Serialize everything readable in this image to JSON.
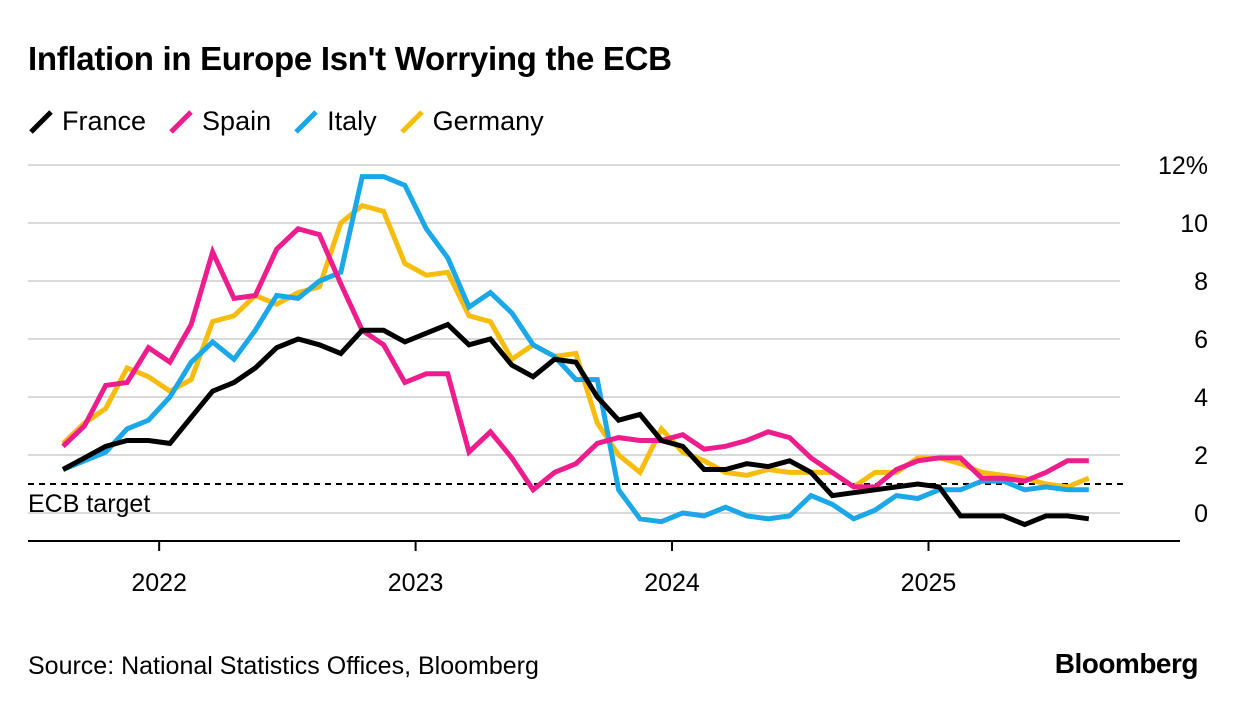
{
  "header": {
    "title": "Inflation in Europe Isn't Worrying the ECB"
  },
  "footer": {
    "source": "Source: National Statistics Offices, Bloomberg",
    "brand": "Bloomberg"
  },
  "chart_data": {
    "type": "line",
    "title": "Inflation in Europe Isn't Worrying the ECB",
    "xlabel": "",
    "ylabel": "",
    "ylim": [
      -1,
      12
    ],
    "y_ticks": [
      {
        "value": 12,
        "label": "12%"
      },
      {
        "value": 10,
        "label": "10"
      },
      {
        "value": 8,
        "label": "8"
      },
      {
        "value": 6,
        "label": "6"
      },
      {
        "value": 4,
        "label": "4"
      },
      {
        "value": 2,
        "label": "2"
      },
      {
        "value": 0,
        "label": "0"
      }
    ],
    "x_ticks": [
      {
        "index": 4.5,
        "label": "2022"
      },
      {
        "index": 16.5,
        "label": "2023"
      },
      {
        "index": 28.5,
        "label": "2024"
      },
      {
        "index": 40.5,
        "label": "2025"
      }
    ],
    "start_month": "2021-09",
    "reference_line": {
      "value": 1.0,
      "label": "ECB target"
    },
    "series": [
      {
        "name": "France",
        "color": "#000000",
        "values": [
          1.5,
          1.9,
          2.3,
          2.5,
          2.5,
          2.4,
          3.3,
          4.2,
          4.5,
          5.0,
          5.7,
          6.0,
          5.8,
          5.5,
          6.3,
          6.3,
          5.9,
          6.2,
          6.5,
          5.8,
          6.0,
          5.1,
          4.7,
          5.3,
          5.2,
          4.0,
          3.2,
          3.4,
          2.5,
          2.3,
          1.5,
          1.5,
          1.7,
          1.6,
          1.8,
          1.4,
          0.6,
          0.7,
          0.8,
          0.9,
          1.0,
          0.9,
          -0.1,
          -0.1,
          -0.1,
          -0.4,
          -0.1,
          -0.1,
          -0.2
        ]
      },
      {
        "name": "Spain",
        "color": "#ee1d8e",
        "values": [
          2.3,
          3.0,
          4.4,
          4.5,
          5.7,
          5.2,
          6.5,
          9.0,
          7.4,
          7.5,
          9.1,
          9.8,
          9.6,
          7.9,
          6.3,
          5.8,
          4.5,
          4.8,
          4.8,
          2.1,
          2.8,
          1.9,
          0.8,
          1.4,
          1.7,
          2.4,
          2.6,
          2.5,
          2.5,
          2.7,
          2.2,
          2.3,
          2.5,
          2.8,
          2.6,
          1.9,
          1.4,
          0.9,
          0.9,
          1.5,
          1.8,
          1.9,
          1.9,
          1.2,
          1.2,
          1.1,
          1.4,
          1.8,
          1.8
        ]
      },
      {
        "name": "Italy",
        "color": "#1aa8e8",
        "values": [
          1.5,
          1.8,
          2.1,
          2.9,
          3.2,
          4.0,
          5.2,
          5.9,
          5.3,
          6.3,
          7.5,
          7.4,
          8.0,
          8.3,
          11.6,
          11.6,
          11.3,
          9.8,
          8.8,
          7.1,
          7.6,
          6.9,
          5.8,
          5.4,
          4.6,
          4.6,
          0.8,
          -0.2,
          -0.3,
          0.0,
          -0.1,
          0.2,
          -0.1,
          -0.2,
          -0.1,
          0.6,
          0.3,
          -0.2,
          0.1,
          0.6,
          0.5,
          0.8,
          0.8,
          1.1,
          1.1,
          0.8,
          0.9,
          0.8,
          0.8
        ]
      },
      {
        "name": "Germany",
        "color": "#f7bd0e",
        "values": [
          2.4,
          3.1,
          3.6,
          5.0,
          4.7,
          4.2,
          4.6,
          6.6,
          6.8,
          7.5,
          7.2,
          7.6,
          7.8,
          10.0,
          10.6,
          10.4,
          8.6,
          8.2,
          8.3,
          6.8,
          6.6,
          5.3,
          5.8,
          5.4,
          5.5,
          3.1,
          2.0,
          1.4,
          2.9,
          2.1,
          1.8,
          1.4,
          1.3,
          1.5,
          1.4,
          1.4,
          1.4,
          0.9,
          1.4,
          1.4,
          1.9,
          1.9,
          1.7,
          1.4,
          1.3,
          1.2,
          1.0,
          0.9,
          1.2
        ]
      }
    ]
  }
}
